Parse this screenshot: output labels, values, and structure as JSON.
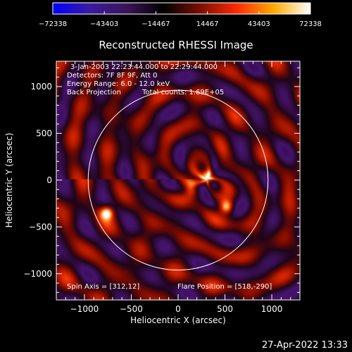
{
  "colorbar": {
    "ticks": [
      "-72338",
      "-43403",
      "-14467",
      "14467",
      "43403",
      "72338"
    ],
    "range": [
      -72338,
      72338
    ],
    "colormap": [
      "#0000ff",
      "#3a1aa0",
      "#3b145a",
      "#000000",
      "#7a0e00",
      "#ff2a00",
      "#ffaa00",
      "#ffffff"
    ]
  },
  "chart_data": {
    "type": "heatmap",
    "title": "Reconstructed RHESSI Image",
    "xlabel": "Heliocentric X (arcsec)",
    "ylabel": "Heliocentric Y (arcsec)",
    "xlim": [
      -1300,
      1300
    ],
    "ylim": [
      -1280,
      1270
    ],
    "xticks": [
      -1000,
      -500,
      0,
      500,
      1000
    ],
    "yticks": [
      -1000,
      -500,
      0,
      500,
      1000
    ],
    "xtick_labels": [
      "−1000",
      "−500",
      "0",
      "500",
      "1000"
    ],
    "ytick_labels": [
      "−1000",
      "−500",
      "0",
      "500",
      "1000"
    ],
    "solar_limb": {
      "center": [
        0,
        0
      ],
      "radius_arcsec": 960
    },
    "sources": [
      {
        "x": 310,
        "y": 40,
        "intensity": "peak"
      },
      {
        "x": 520,
        "y": -290,
        "intensity": "high"
      },
      {
        "x": -760,
        "y": -350,
        "intensity": "high"
      },
      {
        "x": 140,
        "y": -100,
        "intensity": "medium"
      }
    ],
    "annotations": {
      "time": "3-Jan-2003 22:23:44.000 to 22:29:44.000",
      "detectors": "Detectors: 7F 8F 9F, Att 0",
      "energy": "Energy Range: 6.0 - 12.0 keV",
      "method": "Back Projection",
      "counts": "Total counts: 1.69E+05",
      "spin_axis": "Spin Axis = [312,12]",
      "flare_position": "Flare Position = [518,-290]"
    }
  },
  "footer": {
    "timestamp": "27-Apr-2022 13:33"
  }
}
